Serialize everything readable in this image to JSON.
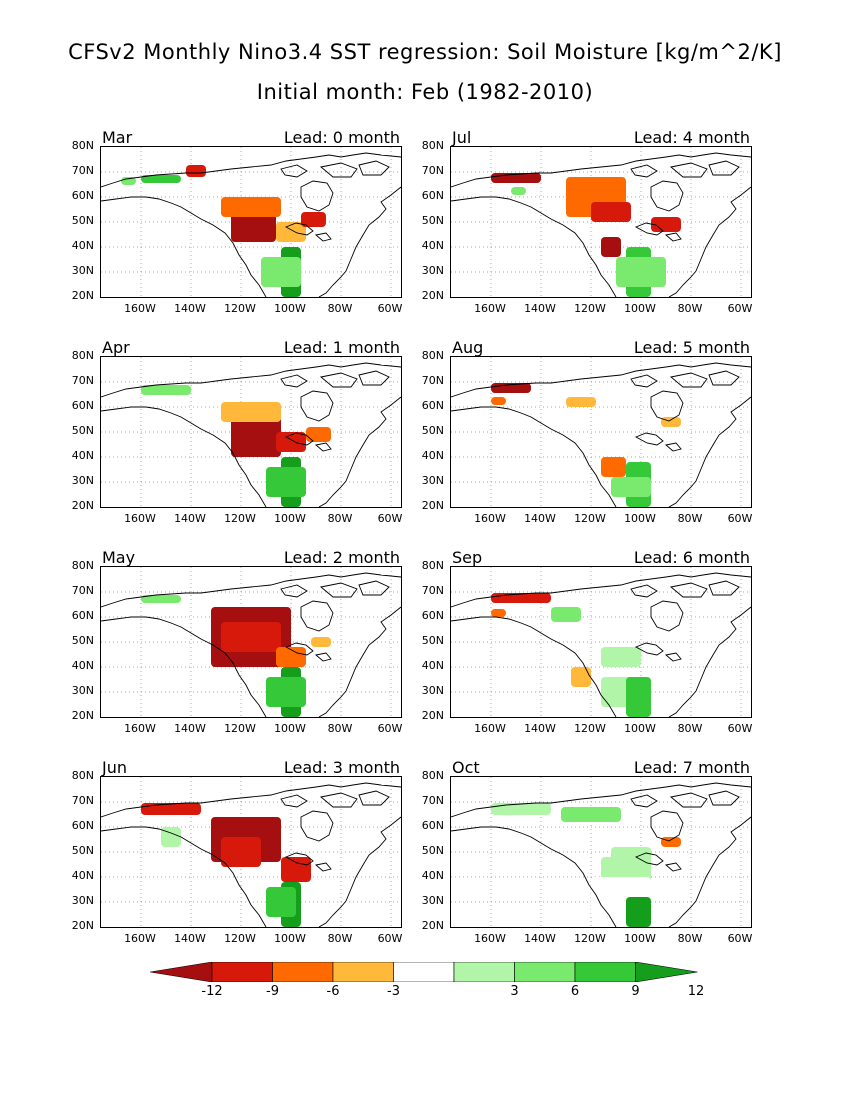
{
  "title": {
    "line1": "CFSv2 Monthly Nino3.4 SST regression: Soil Moisture [kg/m^2/K]",
    "line2": "Initial month: Feb (1982-2010)"
  },
  "axis": {
    "lat_labels": [
      "80N",
      "70N",
      "60N",
      "50N",
      "40N",
      "30N",
      "20N"
    ],
    "lon_labels": [
      "160W",
      "140W",
      "120W",
      "100W",
      "80W",
      "60W"
    ]
  },
  "panels": [
    {
      "month": "Mar",
      "lead": "Lead: 0 month"
    },
    {
      "month": "Jul",
      "lead": "Lead: 4 month"
    },
    {
      "month": "Apr",
      "lead": "Lead: 1 month"
    },
    {
      "month": "Aug",
      "lead": "Lead: 5 month"
    },
    {
      "month": "May",
      "lead": "Lead: 2 month"
    },
    {
      "month": "Sep",
      "lead": "Lead: 6 month"
    },
    {
      "month": "Jun",
      "lead": "Lead: 3 month"
    },
    {
      "month": "Oct",
      "lead": "Lead: 7 month"
    }
  ],
  "colorbar": {
    "labels": [
      "-12",
      "-9",
      "-6",
      "-3",
      "3",
      "6",
      "9",
      "12"
    ],
    "colors": [
      "#a50f0f",
      "#d7190c",
      "#ff6a00",
      "#ffb83a",
      "#ffffff",
      "#b0f5a8",
      "#79ea6e",
      "#35c93a",
      "#149e1c"
    ]
  }
}
